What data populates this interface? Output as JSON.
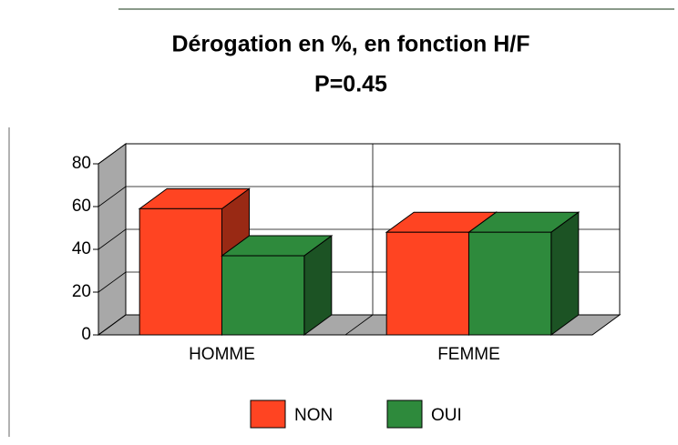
{
  "chart_data": {
    "type": "bar3d",
    "title": "Dérogation en %, en fonction H/F",
    "subtitle": "P=0.45",
    "categories": [
      "HOMME",
      "FEMME"
    ],
    "series": [
      {
        "name": "NON",
        "color": "#ff4422",
        "values": [
          59,
          48
        ]
      },
      {
        "name": "OUI",
        "color": "#2e8a3c",
        "values": [
          37,
          48
        ]
      }
    ],
    "ylim": [
      0,
      80
    ],
    "yticks": [
      0,
      20,
      40,
      60,
      80
    ],
    "grid": true,
    "legend": "bottom"
  }
}
